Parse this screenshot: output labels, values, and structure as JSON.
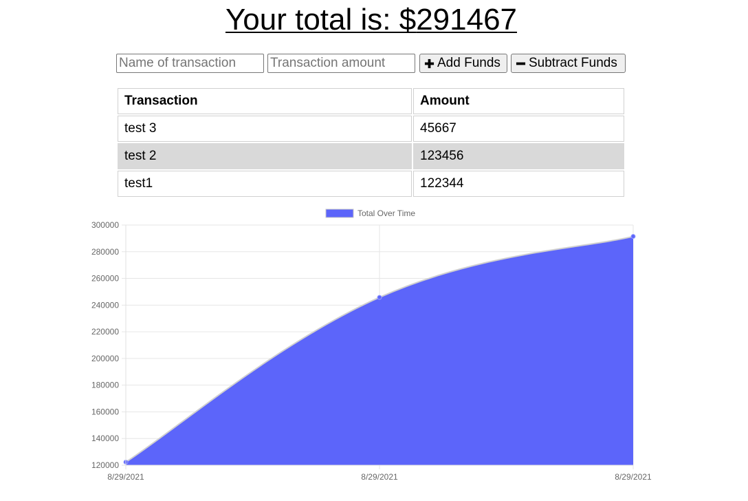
{
  "header": {
    "total_label": "Your total is: $",
    "total_value": "291467"
  },
  "form": {
    "name_placeholder": "Name of transaction",
    "amount_placeholder": "Transaction amount",
    "name_value": "",
    "amount_value": "",
    "add_label": "Add Funds",
    "subtract_label": "Subtract Funds",
    "add_icon": "plus-icon",
    "subtract_icon": "minus-icon"
  },
  "table": {
    "headers": [
      "Transaction",
      "Amount"
    ],
    "rows": [
      {
        "name": "test 3",
        "amount": "45667"
      },
      {
        "name": "test 2",
        "amount": "123456"
      },
      {
        "name": "test1",
        "amount": "122344"
      }
    ]
  },
  "chart_data": {
    "type": "area",
    "legend": "Total Over Time",
    "legend_position": "top",
    "fill_color": "#5c65fa",
    "x": [
      "8/29/2021",
      "8/29/2021",
      "8/29/2021"
    ],
    "values": [
      122344,
      245800,
      291467
    ],
    "ylim": [
      120000,
      300000
    ],
    "ytick_step": 20000,
    "grid": true
  }
}
